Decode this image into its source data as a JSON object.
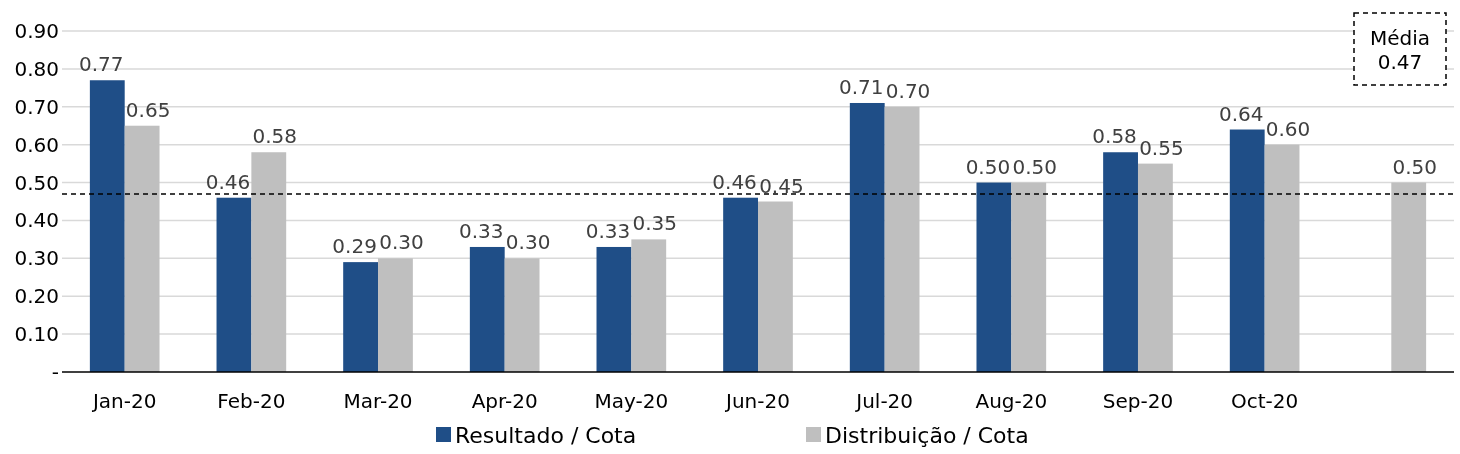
{
  "chart_data": {
    "type": "bar",
    "categories": [
      "Jan-20",
      "Feb-20",
      "Mar-20",
      "Apr-20",
      "May-20",
      "Jun-20",
      "Jul-20",
      "Aug-20",
      "Sep-20",
      "Oct-20",
      null
    ],
    "series": [
      {
        "name": "Resultado / Cota",
        "color": "#1f4e87",
        "values": [
          0.77,
          0.46,
          0.29,
          0.33,
          0.33,
          0.46,
          0.71,
          0.5,
          0.58,
          0.64,
          null
        ],
        "value_labels": [
          "0.77",
          "0.46",
          "0.29",
          "0.33",
          "0.33",
          "0.46",
          "0.71",
          "0.50",
          "0.58",
          "0.64",
          null
        ]
      },
      {
        "name": "Distribuição / Cota",
        "color": "#bfbfbf",
        "values": [
          0.65,
          0.58,
          0.3,
          0.3,
          0.35,
          0.45,
          0.7,
          0.5,
          0.55,
          0.6,
          0.5
        ],
        "value_labels": [
          "0.65",
          "0.58",
          "0.30",
          "0.30",
          "0.35",
          "0.45",
          "0.70",
          "0.50",
          "0.55",
          "0.60",
          "0.50"
        ]
      }
    ],
    "ylim": [
      0,
      0.9
    ],
    "yticks": [
      {
        "value": 0,
        "label": "-"
      },
      {
        "value": 0.1,
        "label": "0.10"
      },
      {
        "value": 0.2,
        "label": "0.20"
      },
      {
        "value": 0.3,
        "label": "0.30"
      },
      {
        "value": 0.4,
        "label": "0.40"
      },
      {
        "value": 0.5,
        "label": "0.50"
      },
      {
        "value": 0.6,
        "label": "0.60"
      },
      {
        "value": 0.7,
        "label": "0.70"
      },
      {
        "value": 0.8,
        "label": "0.80"
      },
      {
        "value": 0.9,
        "label": "0.90"
      }
    ],
    "grid": "y",
    "legend": "bottom",
    "annotations": [
      "Média\n0.47"
    ],
    "ref_lines": [
      {
        "axis": "y",
        "value": 0.47,
        "color": "#000000",
        "line_style": "dashed"
      }
    ]
  }
}
